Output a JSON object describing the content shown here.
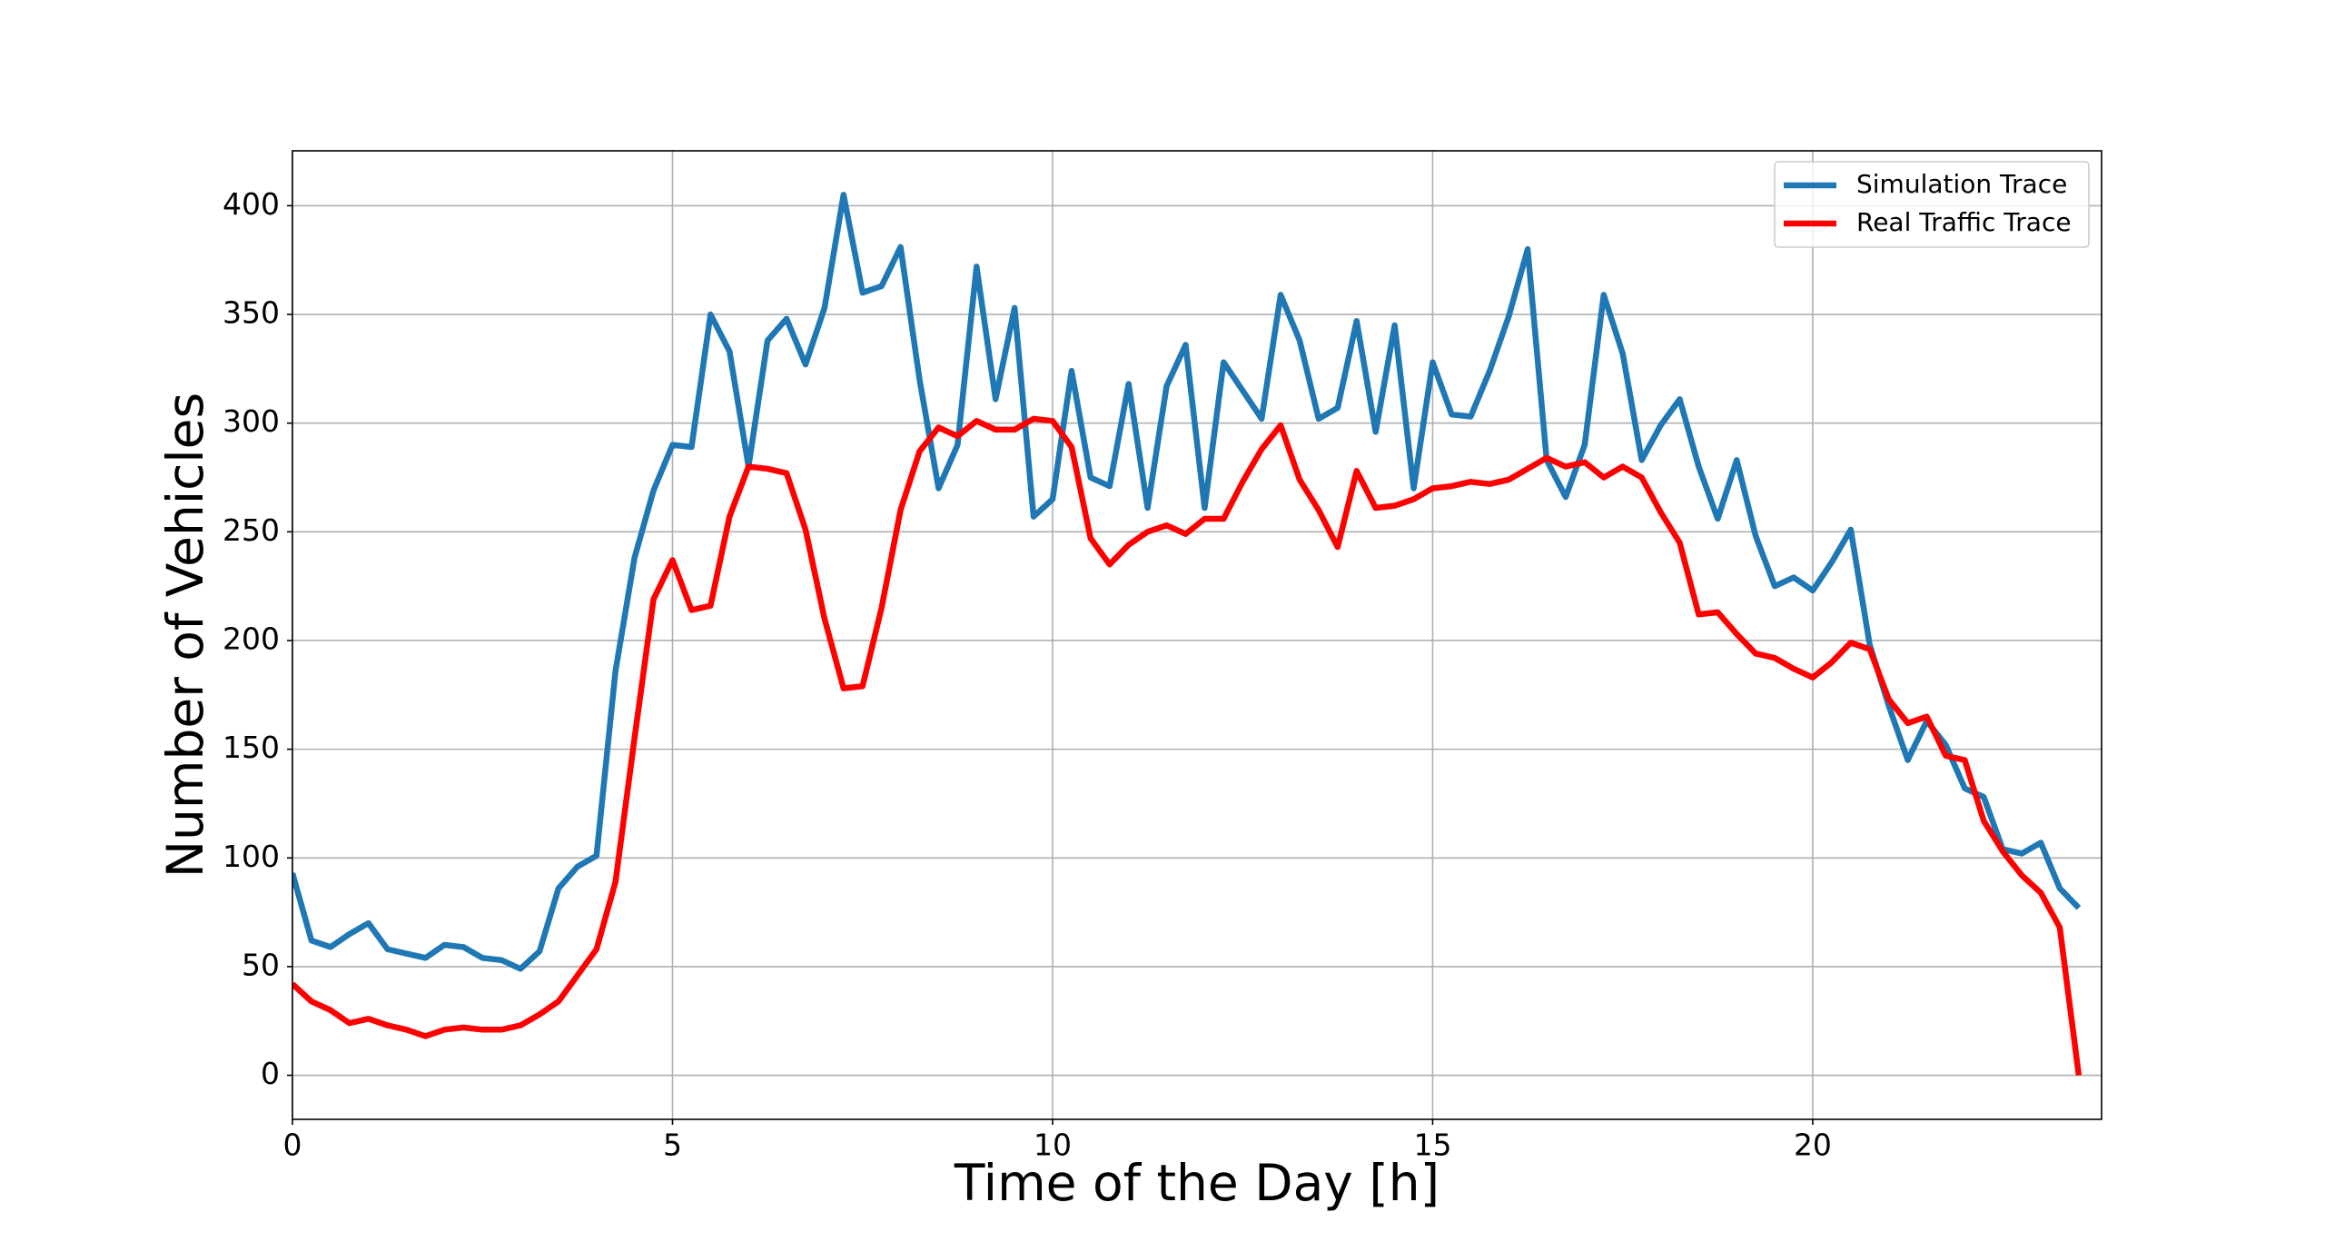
{
  "chart_data": {
    "type": "line",
    "x_label": "Time of the Day [h]",
    "y_label": "Number of Vehicles",
    "x": [
      0,
      0.25,
      0.5,
      0.75,
      1,
      1.25,
      1.5,
      1.75,
      2,
      2.25,
      2.5,
      2.75,
      3,
      3.25,
      3.5,
      3.75,
      4,
      4.25,
      4.5,
      4.75,
      5,
      5.25,
      5.5,
      5.75,
      6,
      6.25,
      6.5,
      6.75,
      7,
      7.25,
      7.5,
      7.75,
      8,
      8.25,
      8.5,
      8.75,
      9,
      9.25,
      9.5,
      9.75,
      10,
      10.25,
      10.5,
      10.75,
      11,
      11.25,
      11.5,
      11.75,
      12,
      12.25,
      12.5,
      12.75,
      13,
      13.25,
      13.5,
      13.75,
      14,
      14.25,
      14.5,
      14.75,
      15,
      15.25,
      15.5,
      15.75,
      16,
      16.25,
      16.5,
      16.75,
      17,
      17.25,
      17.5,
      17.75,
      18,
      18.25,
      18.5,
      18.75,
      19,
      19.25,
      19.5,
      19.75,
      20,
      20.25,
      20.5,
      20.75,
      21,
      21.25,
      21.5,
      21.75,
      22,
      22.25,
      22.5,
      22.75,
      23,
      23.25,
      23.5
    ],
    "series": [
      {
        "name": "Simulation Trace",
        "color": "#1f77b4",
        "values": [
          93,
          62,
          59,
          65,
          70,
          58,
          56,
          54,
          60,
          59,
          54,
          53,
          49,
          57,
          86,
          96,
          101,
          186,
          238,
          269,
          290,
          289,
          350,
          333,
          280,
          338,
          348,
          327,
          353,
          405,
          360,
          363,
          381,
          320,
          270,
          290,
          372,
          311,
          353,
          257,
          265,
          324,
          275,
          271,
          318,
          261,
          317,
          336,
          261,
          328,
          315,
          302,
          359,
          338,
          302,
          307,
          347,
          296,
          345,
          270,
          328,
          304,
          303,
          324,
          349,
          380,
          283,
          266,
          290,
          359,
          332,
          283,
          299,
          311,
          280,
          256,
          283,
          248,
          225,
          229,
          223,
          236,
          251,
          198,
          170,
          145,
          163,
          152,
          132,
          128,
          104,
          102,
          107,
          86,
          77
        ]
      },
      {
        "name": "Real Traffic Trace",
        "color": "#ff0000",
        "values": [
          42,
          34,
          30,
          24,
          26,
          23,
          21,
          18,
          21,
          22,
          21,
          21,
          23,
          28,
          34,
          46,
          58,
          89,
          155,
          219,
          237,
          214,
          216,
          257,
          280,
          279,
          277,
          251,
          210,
          178,
          179,
          215,
          260,
          287,
          298,
          294,
          301,
          297,
          297,
          302,
          301,
          289,
          247,
          235,
          244,
          250,
          253,
          249,
          256,
          256,
          273,
          288,
          299,
          274,
          260,
          243,
          278,
          261,
          262,
          265,
          270,
          271,
          273,
          272,
          274,
          279,
          284,
          280,
          282,
          275,
          280,
          275,
          259,
          245,
          212,
          213,
          203,
          194,
          192,
          187,
          183,
          190,
          199,
          196,
          173,
          162,
          165,
          147,
          145,
          117,
          103,
          92,
          84,
          68,
          0
        ]
      }
    ],
    "xlim": [
      0,
      23.8
    ],
    "ylim": [
      -20.25,
      425.25
    ],
    "xticks": [
      0,
      5,
      10,
      15,
      20
    ],
    "yticks": [
      0,
      50,
      100,
      150,
      200,
      250,
      300,
      350,
      400
    ],
    "grid": true,
    "legend": "upper-right"
  }
}
